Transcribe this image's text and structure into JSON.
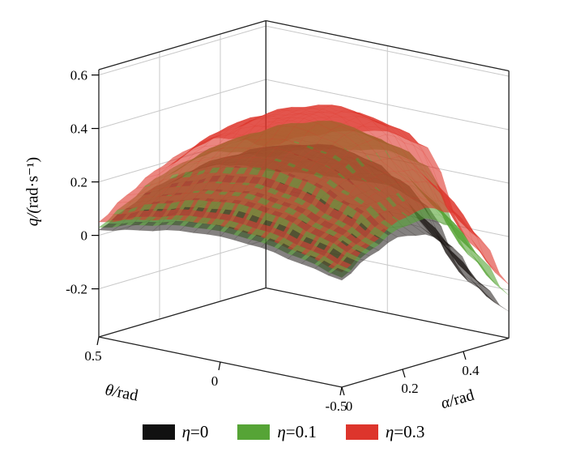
{
  "chart_data": {
    "type": "surface",
    "title": "",
    "description": "3D reachable-region surfaces q(alpha,theta) for three values of eta",
    "axes": {
      "x": {
        "label": "α/rad",
        "ticks": [
          "0",
          "0.2",
          "0.4"
        ],
        "tick_values": [
          0,
          0.2,
          0.4
        ],
        "range": [
          0,
          0.55
        ]
      },
      "y": {
        "label": "θ/rad",
        "ticks": [
          "0.5",
          "0",
          "-0.5"
        ],
        "tick_values": [
          0.5,
          0,
          -0.5
        ],
        "range": [
          -0.5,
          0.5
        ]
      },
      "z": {
        "label": "q/(rad·s⁻¹)",
        "ticks": [
          "-0.2",
          "0",
          "0.2",
          "0.4",
          "0.6"
        ],
        "tick_values": [
          -0.2,
          0,
          0.2,
          0.4,
          0.6
        ],
        "range": [
          -0.38,
          0.62
        ]
      }
    },
    "grid_samples": {
      "alpha": [
        0,
        0.092,
        0.183,
        0.275,
        0.367,
        0.458,
        0.55
      ],
      "theta": [
        -0.5,
        -0.333,
        -0.167,
        0,
        0.167,
        0.333,
        0.5
      ]
    },
    "series": [
      {
        "name": "η=0",
        "color": "#1f1a18",
        "z_grid": [
          [
            0.02,
            0.08,
            0.12,
            0.1,
            0.02,
            -0.15,
            -0.28
          ],
          [
            0.05,
            0.13,
            0.2,
            0.2,
            0.13,
            -0.02,
            -0.2
          ],
          [
            0.08,
            0.17,
            0.26,
            0.3,
            0.28,
            0.18,
            0.05
          ],
          [
            0.09,
            0.19,
            0.28,
            0.33,
            0.31,
            0.22,
            0.1
          ],
          [
            0.08,
            0.17,
            0.26,
            0.3,
            0.28,
            0.2,
            0.09
          ],
          [
            0.05,
            0.13,
            0.2,
            0.23,
            0.22,
            0.17,
            0.08
          ],
          [
            0.02,
            0.07,
            0.12,
            0.14,
            0.14,
            0.11,
            0.06
          ]
        ]
      },
      {
        "name": "η=0.1",
        "color": "#56a436",
        "z_grid": [
          [
            0.03,
            0.1,
            0.15,
            0.16,
            0.1,
            -0.05,
            -0.22
          ],
          [
            0.07,
            0.15,
            0.24,
            0.26,
            0.22,
            0.1,
            -0.1
          ],
          [
            0.1,
            0.2,
            0.3,
            0.36,
            0.37,
            0.3,
            0.2
          ],
          [
            0.11,
            0.22,
            0.32,
            0.38,
            0.4,
            0.33,
            0.23
          ],
          [
            0.1,
            0.2,
            0.29,
            0.35,
            0.36,
            0.3,
            0.2
          ],
          [
            0.07,
            0.15,
            0.24,
            0.28,
            0.29,
            0.25,
            0.17
          ],
          [
            0.03,
            0.09,
            0.15,
            0.18,
            0.19,
            0.16,
            0.11
          ]
        ]
      },
      {
        "name": "η=0.3",
        "color": "#dd352c",
        "z_grid": [
          [
            0.05,
            0.12,
            0.18,
            0.2,
            0.15,
            0.02,
            -0.18
          ],
          [
            0.09,
            0.18,
            0.28,
            0.3,
            0.28,
            0.18,
            -0.05
          ],
          [
            0.12,
            0.23,
            0.34,
            0.41,
            0.43,
            0.37,
            0.27
          ],
          [
            0.13,
            0.25,
            0.36,
            0.44,
            0.46,
            0.4,
            0.3
          ],
          [
            0.12,
            0.23,
            0.33,
            0.41,
            0.42,
            0.37,
            0.27
          ],
          [
            0.09,
            0.18,
            0.28,
            0.33,
            0.35,
            0.3,
            0.22
          ],
          [
            0.05,
            0.12,
            0.18,
            0.22,
            0.24,
            0.21,
            0.15
          ]
        ]
      }
    ],
    "legend": {
      "position": "bottom",
      "entries": [
        {
          "label": "η=0",
          "color": "#111111"
        },
        {
          "label": "η=0.1",
          "color": "#56a436"
        },
        {
          "label": "η=0.3",
          "color": "#dd352c"
        }
      ]
    }
  }
}
